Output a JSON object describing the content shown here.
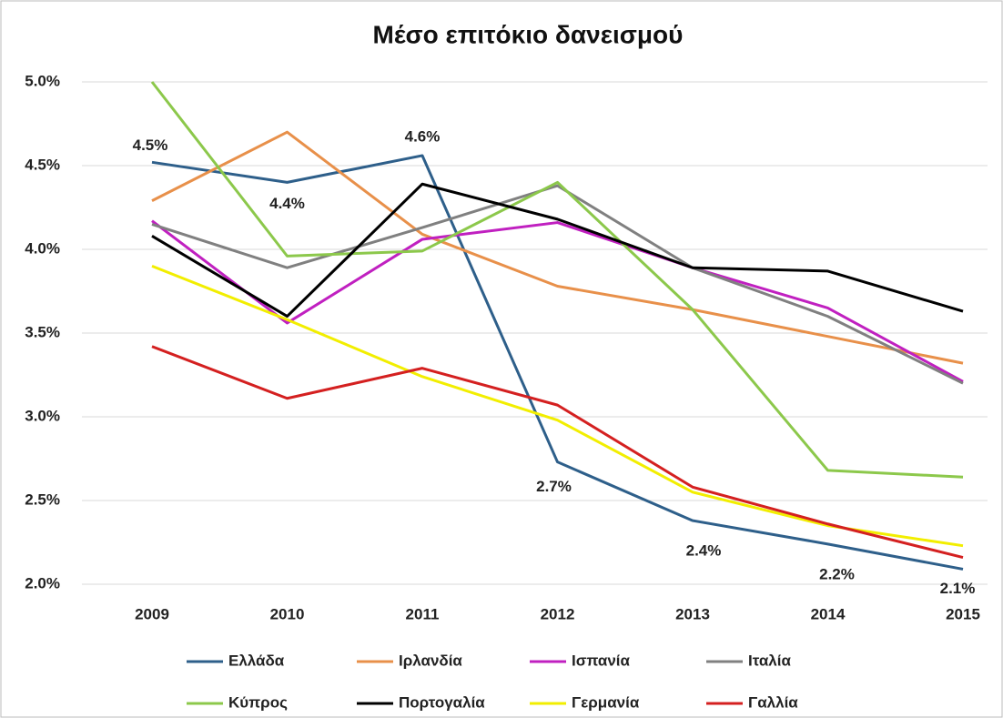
{
  "chart_data": {
    "type": "line",
    "title": "Μέσο επιτόκιο δανεισμού",
    "categories": [
      "2009",
      "2010",
      "2011",
      "2012",
      "2013",
      "2014",
      "2015"
    ],
    "ylim": [
      2.0,
      5.0
    ],
    "yticks": [
      {
        "value": 2.0,
        "label": "2.0%"
      },
      {
        "value": 2.5,
        "label": "2.5%"
      },
      {
        "value": 3.0,
        "label": "3.0%"
      },
      {
        "value": 3.5,
        "label": "3.5%"
      },
      {
        "value": 4.0,
        "label": "4.0%"
      },
      {
        "value": 4.5,
        "label": "4.5%"
      },
      {
        "value": 5.0,
        "label": "5.0%"
      }
    ],
    "grid": true,
    "legend": "bottom",
    "series": [
      {
        "name": "Ελλάδα",
        "color": "#2e5f8a",
        "values": [
          4.52,
          4.4,
          4.56,
          2.73,
          2.38,
          2.24,
          2.09
        ],
        "value_labels": [
          "4.5%",
          "4.4%",
          "4.6%",
          "2.7%",
          "2.4%",
          "2.2%",
          "2.1%"
        ]
      },
      {
        "name": "Ιρλανδία",
        "color": "#e8904a",
        "values": [
          4.29,
          4.7,
          4.09,
          3.78,
          3.64,
          3.48,
          3.32
        ]
      },
      {
        "name": "Ισπανία",
        "color": "#c020c0",
        "values": [
          4.17,
          3.56,
          4.06,
          4.16,
          3.89,
          3.65,
          3.21
        ]
      },
      {
        "name": "Ιταλία",
        "color": "#808080",
        "values": [
          4.15,
          3.89,
          4.13,
          4.38,
          3.89,
          3.6,
          3.2
        ]
      },
      {
        "name": "Κύπρος",
        "color": "#8cc84b",
        "values": [
          5.0,
          3.96,
          3.99,
          4.4,
          3.64,
          2.68,
          2.64
        ]
      },
      {
        "name": "Πορτογαλία",
        "color": "#000000",
        "values": [
          4.08,
          3.6,
          4.39,
          4.18,
          3.89,
          3.87,
          3.63
        ]
      },
      {
        "name": "Γερμανία",
        "color": "#f2ee00",
        "values": [
          3.9,
          3.58,
          3.24,
          2.98,
          2.55,
          2.35,
          2.23
        ]
      },
      {
        "name": "Γαλλία",
        "color": "#d42020",
        "values": [
          3.42,
          3.11,
          3.29,
          3.07,
          2.58,
          2.36,
          2.16
        ]
      }
    ]
  }
}
